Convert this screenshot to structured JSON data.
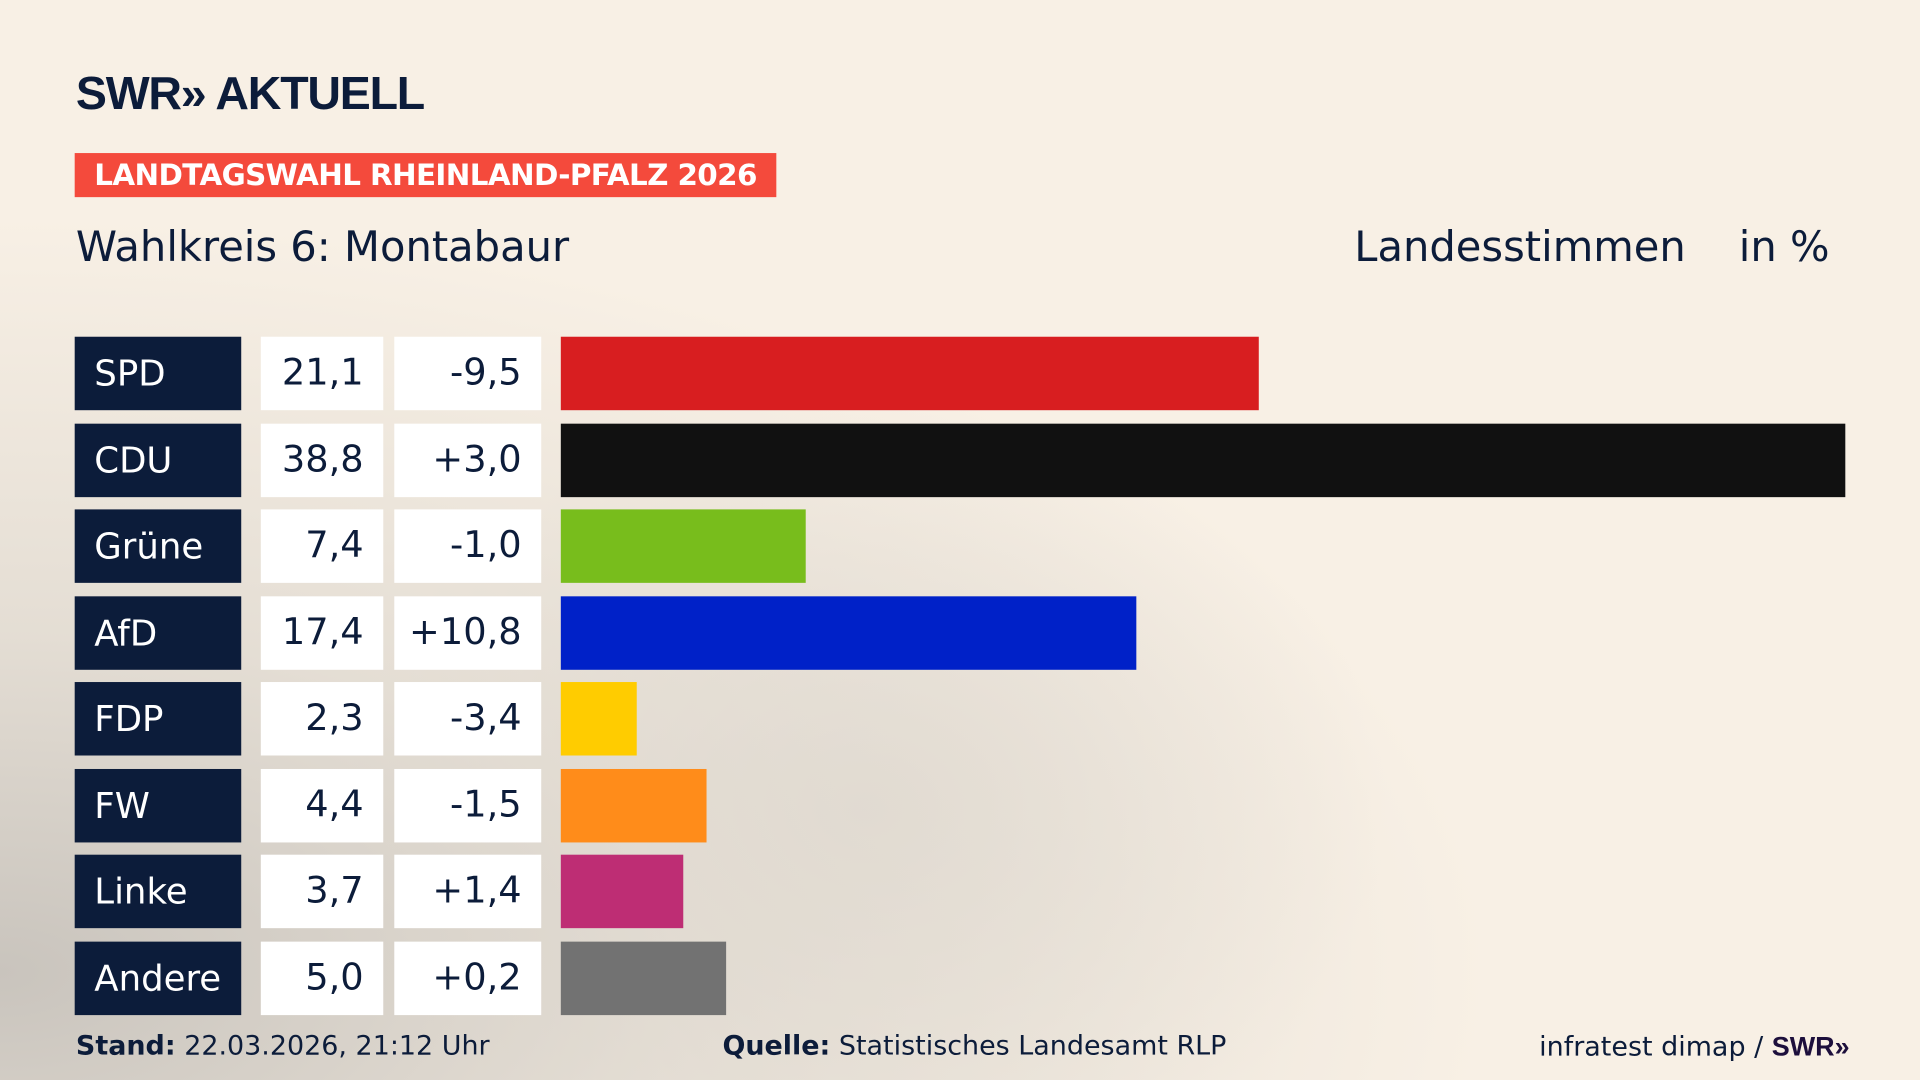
{
  "header": {
    "logo": "SWR» AKTUELL",
    "banner": "LANDTAGSWAHL RHEINLAND-PFALZ 2026",
    "subtitle": "Wahlkreis 6: Montabaur",
    "vote_type": "Landesstimmen",
    "unit": "in %"
  },
  "chart_data": {
    "type": "bar",
    "orientation": "horizontal",
    "xlim": [
      0,
      38.8
    ],
    "categories": [
      "SPD",
      "CDU",
      "Grüne",
      "AfD",
      "FDP",
      "FW",
      "Linke",
      "Andere"
    ],
    "values": [
      21.1,
      38.8,
      7.4,
      17.4,
      2.3,
      4.4,
      3.7,
      5.0
    ],
    "value_labels": [
      "21,1",
      "38,8",
      "7,4",
      "17,4",
      "2,3",
      "4,4",
      "3,7",
      "5,0"
    ],
    "diff_labels": [
      "-9,5",
      "+3,0",
      "-1,0",
      "+10,8",
      "-3,4",
      "-1,5",
      "+1,4",
      "+0,2"
    ],
    "colors": [
      "#d81e20",
      "#111111",
      "#78bd1c",
      "#0021c8",
      "#ffcc00",
      "#ff8c1a",
      "#be2d74",
      "#727272"
    ]
  },
  "footer": {
    "stand_label": "Stand:",
    "stand_value": "22.03.2026, 21:12 Uhr",
    "source_label": "Quelle:",
    "source_value": "Statistisches Landesamt RLP",
    "credit": "infratest dimap / ",
    "credit_logo": "SWR»"
  }
}
